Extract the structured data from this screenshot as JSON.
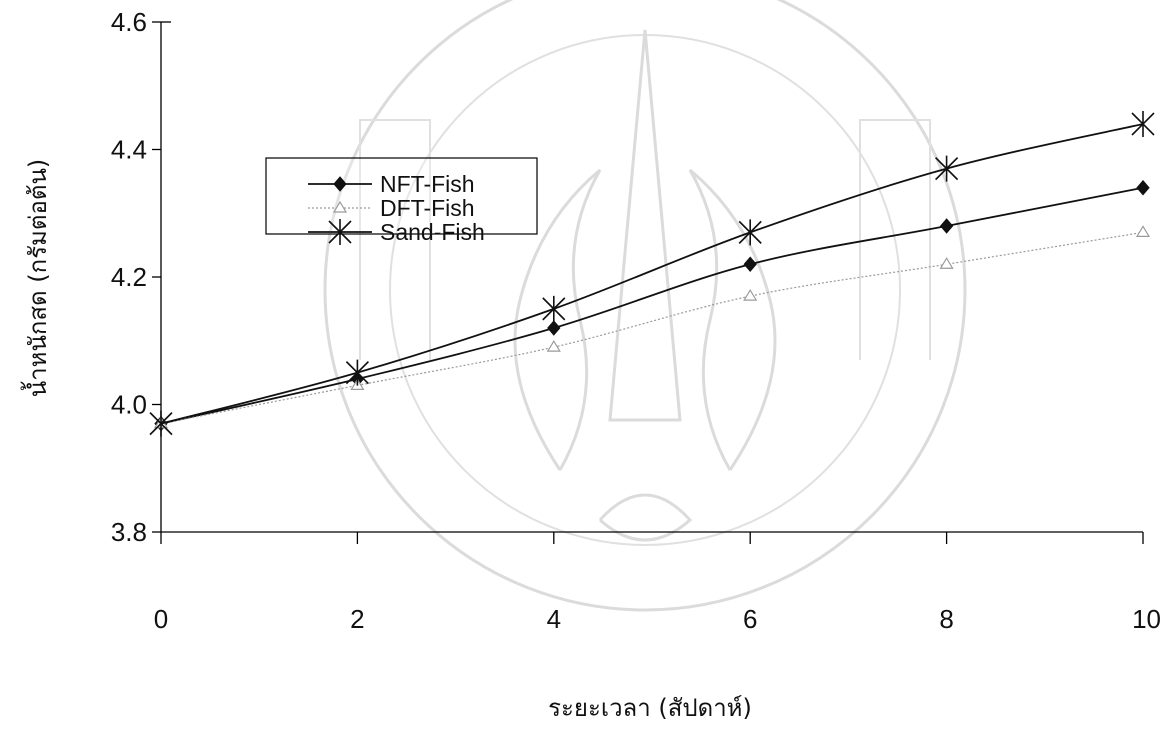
{
  "chart_data": {
    "type": "line",
    "xlabel": "ระยะเวลา (สัปดาห์)",
    "ylabel": "น้ำหนักสด (กรัมต่อต้น)",
    "x": [
      0,
      2,
      4,
      6,
      8,
      10
    ],
    "xticks": [
      "0",
      "2",
      "4",
      "6",
      "8",
      "10"
    ],
    "yticks": [
      "3.8",
      "4.0",
      "4.2",
      "4.4",
      "4.6"
    ],
    "ytick_values": [
      3.8,
      4.0,
      4.2,
      4.4,
      4.6
    ],
    "xlim": [
      0,
      10
    ],
    "ylim": [
      3.8,
      4.6
    ],
    "grid": false,
    "legend_position": "upper-left",
    "series": [
      {
        "name": "NFT-Fish",
        "marker": "diamond",
        "color": "#111111",
        "values": [
          3.97,
          4.04,
          4.12,
          4.22,
          4.28,
          4.34
        ]
      },
      {
        "name": "DFT-Fish",
        "marker": "triangle",
        "color": "#9a9a9a",
        "values": [
          3.97,
          4.03,
          4.09,
          4.17,
          4.22,
          4.27
        ]
      },
      {
        "name": "Sand-Fish",
        "marker": "asterisk",
        "color": "#111111",
        "values": [
          3.97,
          4.05,
          4.15,
          4.27,
          4.37,
          4.44
        ]
      }
    ]
  }
}
